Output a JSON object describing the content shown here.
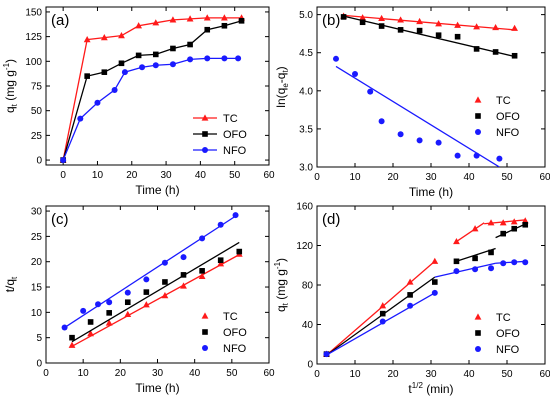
{
  "colors": {
    "TC": "#ff1a1a",
    "OFO": "#000000",
    "NFO": "#1a1aff"
  },
  "chart_data": [
    {
      "type": "line",
      "panel_label": "(a)",
      "xlabel": "Time (h)",
      "ylabel": "q_t (mg g^-1)",
      "ylabel_parts": {
        "base": "q",
        "sub": "t",
        "unit": " (mg g",
        "sup": "-1",
        "close": ")"
      },
      "xlim": [
        -5,
        60
      ],
      "ylim": [
        -5,
        155
      ],
      "xticks": [
        0,
        10,
        20,
        30,
        40,
        50,
        60
      ],
      "yticks": [
        0,
        25,
        50,
        75,
        100,
        125,
        150
      ],
      "legend": {
        "placement": "lower-right",
        "entries": [
          "TC",
          "OFO",
          "NFO"
        ]
      },
      "series": [
        {
          "name": "TC",
          "marker": "triangle",
          "connect": "line",
          "x": [
            0,
            7,
            12,
            17,
            22,
            27,
            32,
            37,
            42,
            47,
            52
          ],
          "y": [
            0,
            122,
            124,
            126,
            136,
            139,
            142,
            143,
            144,
            144,
            144
          ]
        },
        {
          "name": "OFO",
          "marker": "square",
          "connect": "line",
          "x": [
            0,
            7,
            12,
            17,
            22,
            27,
            32,
            37,
            42,
            47,
            52
          ],
          "y": [
            0,
            85,
            89,
            98,
            106,
            107,
            113,
            117,
            132,
            136,
            141
          ]
        },
        {
          "name": "NFO",
          "marker": "circle",
          "connect": "line",
          "x": [
            0,
            5,
            10,
            15,
            18,
            23,
            27,
            32,
            37,
            42,
            47,
            51
          ],
          "y": [
            0,
            42,
            58,
            71,
            89,
            94,
            96,
            97,
            102,
            103,
            103,
            103
          ]
        }
      ]
    },
    {
      "type": "scatter",
      "panel_label": "(b)",
      "xlabel": "Time (h)",
      "ylabel": "ln(q_e-q_t)",
      "ylabel_parts": {
        "pre": "ln(q",
        "sub1": "e",
        "mid": "-q",
        "sub2": "t",
        "close": ")"
      },
      "xlim": [
        0,
        60
      ],
      "ylim": [
        3.0,
        5.1
      ],
      "xticks": [
        0,
        10,
        20,
        30,
        40,
        50,
        60
      ],
      "yticks": [
        3.0,
        3.5,
        4.0,
        4.5,
        5.0
      ],
      "legend": {
        "placement": "right",
        "entries": [
          "TC",
          "OFO",
          "NFO"
        ]
      },
      "series": [
        {
          "name": "TC",
          "marker": "triangle",
          "x": [
            7,
            12,
            17,
            22,
            27,
            32,
            37,
            42,
            47,
            52
          ],
          "y": [
            4.98,
            4.96,
            4.95,
            4.93,
            4.91,
            4.88,
            4.86,
            4.84,
            4.83,
            4.82
          ],
          "fit": [
            [
              7,
              4.99
            ],
            [
              52,
              4.8
            ]
          ]
        },
        {
          "name": "OFO",
          "marker": "square",
          "x": [
            7,
            12,
            17,
            22,
            27,
            32,
            37,
            42,
            47,
            52
          ],
          "y": [
            4.97,
            4.9,
            4.85,
            4.8,
            4.79,
            4.73,
            4.71,
            4.55,
            4.51,
            4.46
          ],
          "fit": [
            [
              7,
              4.98
            ],
            [
              52,
              4.45
            ]
          ]
        },
        {
          "name": "NFO",
          "marker": "circle",
          "x": [
            5,
            10,
            14,
            17,
            22,
            27,
            32,
            37,
            42,
            48
          ],
          "y": [
            4.42,
            4.22,
            3.99,
            3.6,
            3.43,
            3.35,
            3.32,
            3.15,
            3.15,
            3.11
          ],
          "fit": [
            [
              5,
              4.32
            ],
            [
              48,
              3.0
            ]
          ]
        }
      ]
    },
    {
      "type": "scatter",
      "panel_label": "(c)",
      "xlabel": "Time (h)",
      "ylabel": "t/q_t",
      "ylabel_parts": {
        "base": "t/q",
        "sub": "t"
      },
      "xlim": [
        0,
        60
      ],
      "ylim": [
        0,
        31
      ],
      "xticks": [
        0,
        10,
        20,
        30,
        40,
        50,
        60
      ],
      "yticks": [
        0,
        5,
        10,
        15,
        20,
        25,
        30
      ],
      "legend": {
        "placement": "lower-right",
        "entries": [
          "TC",
          "OFO",
          "NFO"
        ]
      },
      "series": [
        {
          "name": "TC",
          "marker": "triangle",
          "x": [
            7,
            12,
            17,
            22,
            27,
            32,
            37,
            42,
            47,
            52
          ],
          "y": [
            3.5,
            5.8,
            7.9,
            9.6,
            11.5,
            13.3,
            15.2,
            17.1,
            19.6,
            21.5
          ],
          "fit": [
            [
              7,
              3.3
            ],
            [
              52,
              21.4
            ]
          ]
        },
        {
          "name": "OFO",
          "marker": "square",
          "x": [
            7,
            12,
            17,
            22,
            27,
            32,
            37,
            42,
            47,
            52
          ],
          "y": [
            5.0,
            8.1,
            9.9,
            12.0,
            14.0,
            16.0,
            17.4,
            18.2,
            20.3,
            22.0
          ],
          "fit": [
            [
              7,
              4.2
            ],
            [
              52,
              23.8
            ]
          ]
        },
        {
          "name": "NFO",
          "marker": "circle",
          "x": [
            5,
            10,
            14,
            17,
            22,
            27,
            32,
            37,
            42,
            47,
            51
          ],
          "y": [
            7.0,
            10.3,
            11.6,
            12.0,
            13.9,
            16.5,
            19.8,
            20.9,
            24.6,
            27.3,
            29.2
          ],
          "fit": [
            [
              5,
              7.0
            ],
            [
              51,
              29.0
            ]
          ]
        }
      ]
    },
    {
      "type": "scatter",
      "panel_label": "(d)",
      "xlabel": "t^1/2 (min)",
      "xlabel_parts": {
        "base": "t",
        "sup": "1/2",
        "unit": " (min)"
      },
      "ylabel": "q_t (mg g^-1)",
      "ylabel_parts": {
        "base": "q",
        "sub": "t",
        "unit": " (mg g",
        "sup": "-1",
        "close": ")"
      },
      "xlim": [
        0,
        60
      ],
      "ylim": [
        0,
        160
      ],
      "xticks": [
        0,
        10,
        20,
        30,
        40,
        50,
        60
      ],
      "yticks": [
        0,
        40,
        80,
        120,
        160
      ],
      "legend": {
        "placement": "lower-right",
        "entries": [
          "TC",
          "OFO",
          "NFO"
        ]
      },
      "series": [
        {
          "name": "TC",
          "marker": "triangle",
          "x": [
            2.5,
            17.3,
            24.5,
            31,
            36.7,
            41.6,
            45.8,
            49,
            51.9,
            54.8
          ],
          "y": [
            10,
            59,
            83,
            104,
            124,
            137,
            143,
            143,
            144,
            145
          ],
          "fit": [
            [
              2.5,
              9
            ],
            [
              31,
              104
            ]
          ],
          "fit2": [
            [
              36.7,
              124
            ],
            [
              44,
              143
            ]
          ],
          "fit3": [
            [
              44,
              142
            ],
            [
              55,
              146
            ]
          ]
        },
        {
          "name": "OFO",
          "marker": "square",
          "x": [
            2.5,
            17.3,
            24.5,
            31,
            36.7,
            41.6,
            45.8,
            49,
            51.9,
            54.8
          ],
          "y": [
            10,
            51,
            70,
            83,
            104,
            107,
            113,
            132,
            137,
            141
          ],
          "fit": [
            [
              2.5,
              9
            ],
            [
              31,
              88
            ]
          ],
          "fit2": [
            [
              36.7,
              104
            ],
            [
              47,
              117
            ]
          ],
          "fit3": [
            [
              47,
              128
            ],
            [
              55,
              142
            ]
          ]
        },
        {
          "name": "NFO",
          "marker": "circle",
          "x": [
            2.5,
            17.3,
            24.5,
            31,
            36.7,
            41.6,
            45.8,
            49,
            51.9,
            54.8
          ],
          "y": [
            10,
            43,
            59,
            72,
            94,
            96,
            97,
            102,
            103,
            103
          ],
          "fit": [
            [
              2.5,
              9
            ],
            [
              31,
              72
            ]
          ],
          "fit2": [
            [
              31,
              88
            ],
            [
              47,
              102
            ]
          ],
          "fit3": [
            [
              47,
              102
            ],
            [
              55,
              104
            ]
          ]
        }
      ]
    }
  ]
}
